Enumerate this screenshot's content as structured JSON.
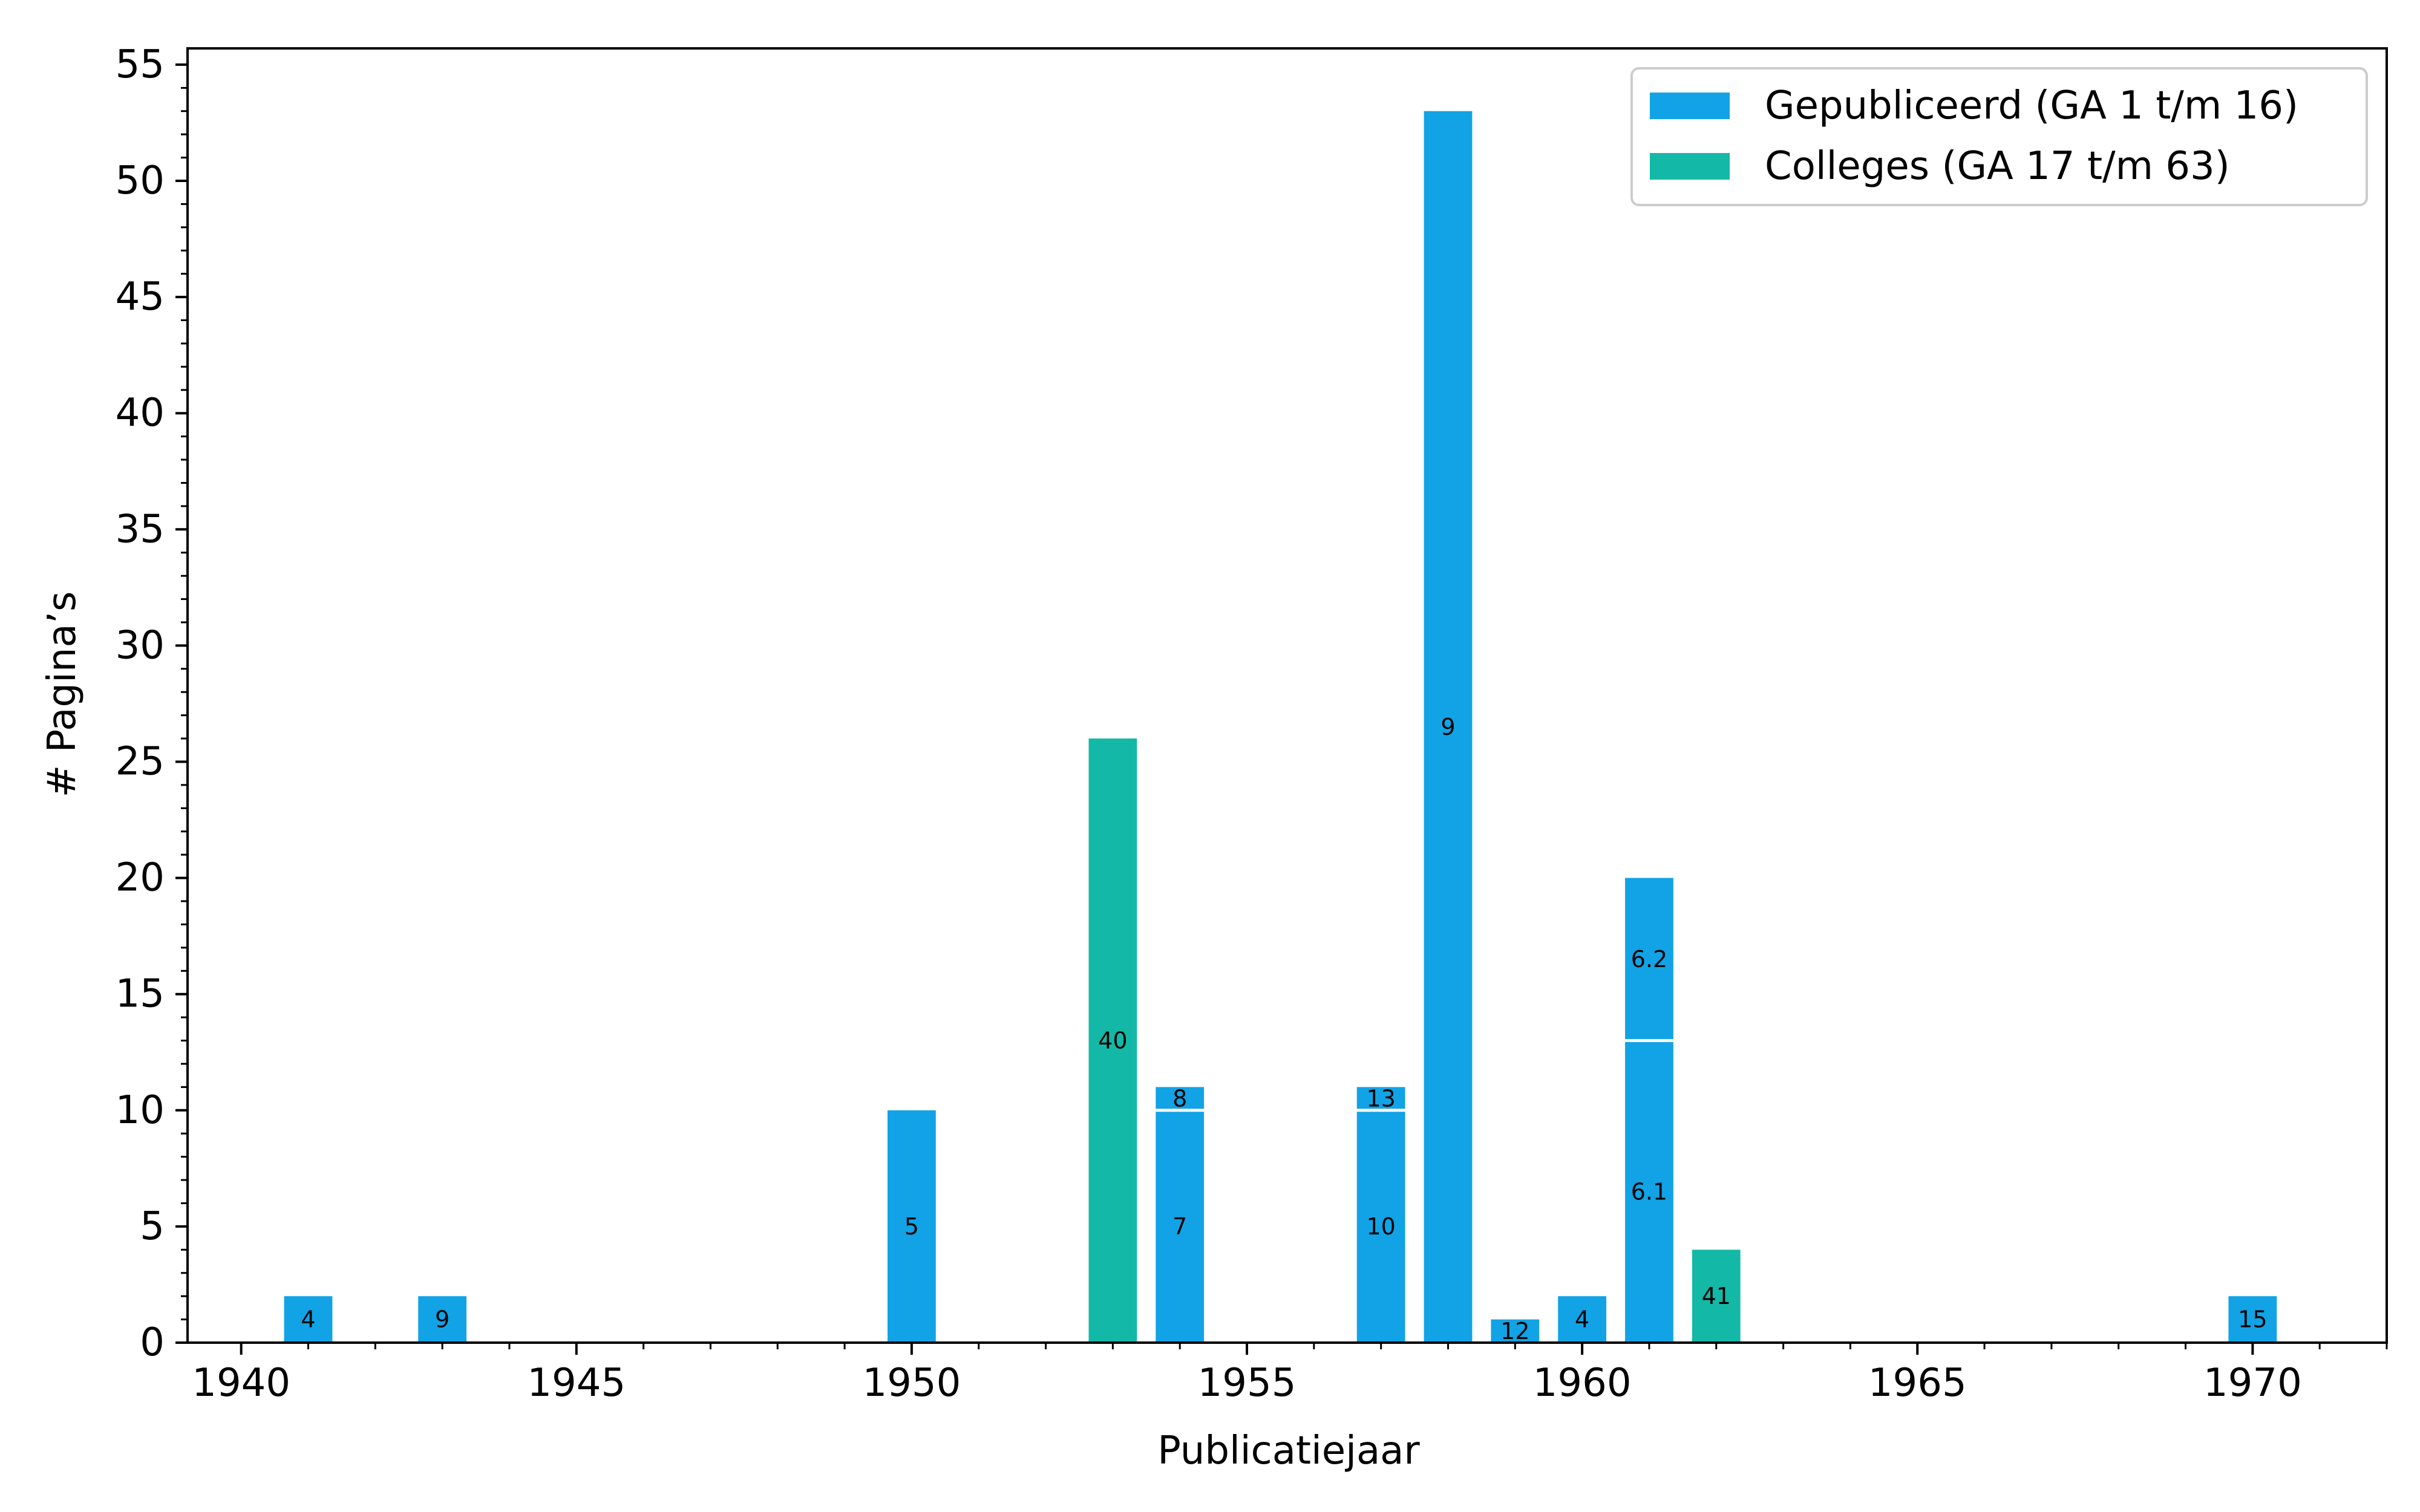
{
  "colors": {
    "published": "#11a3e5",
    "lectures": "#14b8a6",
    "divider": "#ffffff",
    "axis": "#000000"
  },
  "chart_data": {
    "type": "bar",
    "stacked": true,
    "xlabel": "Publicatiejaar",
    "ylabel": "# Pagina’s",
    "xlim": [
      1939.2,
      1972.0
    ],
    "ylim": [
      0,
      55.7
    ],
    "xticks": [
      1940,
      1945,
      1950,
      1955,
      1960,
      1965,
      1970
    ],
    "yticks": [
      0,
      5,
      10,
      15,
      20,
      25,
      30,
      35,
      40,
      45,
      50,
      55
    ],
    "x_minor_step": 1,
    "y_minor_step": 1,
    "bar_width_years": 0.72,
    "grid": false,
    "legend": {
      "position": "top-right",
      "entries": [
        {
          "series": "published",
          "label": "Gepubliceerd (GA 1 t/m 16)"
        },
        {
          "series": "lectures",
          "label": "Colleges (GA 17 t/m 63)"
        }
      ]
    },
    "bars": [
      {
        "year": 1941,
        "series": "published",
        "segments": [
          {
            "label": "4",
            "value": 2
          }
        ]
      },
      {
        "year": 1943,
        "series": "published",
        "segments": [
          {
            "label": "9",
            "value": 2
          }
        ]
      },
      {
        "year": 1950,
        "series": "published",
        "segments": [
          {
            "label": "5",
            "value": 10
          }
        ]
      },
      {
        "year": 1953,
        "series": "lectures",
        "segments": [
          {
            "label": "40",
            "value": 26
          }
        ]
      },
      {
        "year": 1954,
        "series": "published",
        "segments": [
          {
            "label": "7",
            "value": 10
          },
          {
            "label": "8",
            "value": 1
          }
        ]
      },
      {
        "year": 1957,
        "series": "published",
        "segments": [
          {
            "label": "10",
            "value": 10
          },
          {
            "label": "13",
            "value": 1
          }
        ]
      },
      {
        "year": 1958,
        "series": "published",
        "segments": [
          {
            "label": "9",
            "value": 53
          }
        ]
      },
      {
        "year": 1959,
        "series": "published",
        "segments": [
          {
            "label": "12",
            "value": 1
          }
        ]
      },
      {
        "year": 1960,
        "series": "published",
        "segments": [
          {
            "label": "4",
            "value": 2
          }
        ]
      },
      {
        "year": 1961,
        "series": "published",
        "segments": [
          {
            "label": "6.1",
            "value": 13
          },
          {
            "label": "6.2",
            "value": 7
          }
        ]
      },
      {
        "year": 1962,
        "series": "lectures",
        "segments": [
          {
            "label": "41",
            "value": 4
          }
        ]
      },
      {
        "year": 1970,
        "series": "published",
        "segments": [
          {
            "label": "15",
            "value": 2
          }
        ]
      }
    ]
  }
}
